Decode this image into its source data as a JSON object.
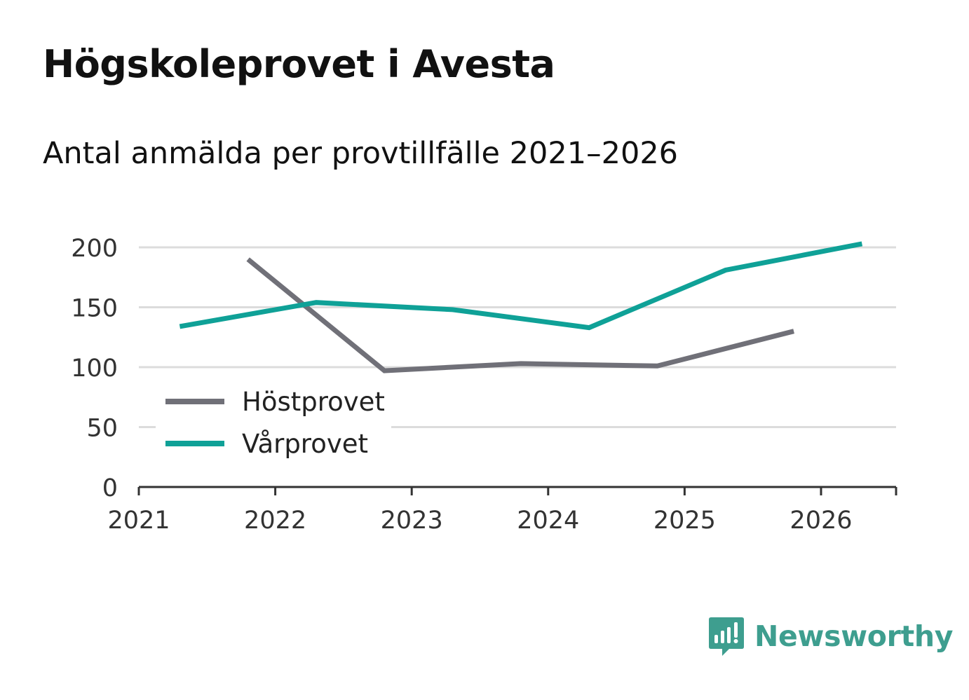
{
  "header": {
    "title": "Högskoleprovet i Avesta",
    "subtitle": "Antal anmälda per provtillfälle 2021–2026"
  },
  "brand": {
    "name": "Newsworthy",
    "color": "#3e9e8f"
  },
  "chart_data": {
    "type": "line",
    "title": "",
    "xlabel": "",
    "ylabel": "",
    "xlim": [
      2021,
      2026.55
    ],
    "ylim": [
      0,
      200
    ],
    "yticks": [
      0,
      50,
      100,
      150,
      200
    ],
    "xticks": [
      "2021",
      "2022",
      "2023",
      "2024",
      "2025",
      "2026"
    ],
    "grid": true,
    "legend_position": "lower-left",
    "series": [
      {
        "name": "Höstprovet",
        "color": "#707078",
        "points": [
          {
            "x": 2021.8,
            "y": 190
          },
          {
            "x": 2022.8,
            "y": 97
          },
          {
            "x": 2023.8,
            "y": 103
          },
          {
            "x": 2024.8,
            "y": 101
          },
          {
            "x": 2025.8,
            "y": 130
          }
        ]
      },
      {
        "name": "Vårprovet",
        "color": "#0fa197",
        "points": [
          {
            "x": 2021.3,
            "y": 134
          },
          {
            "x": 2022.3,
            "y": 154
          },
          {
            "x": 2023.3,
            "y": 148
          },
          {
            "x": 2024.3,
            "y": 133
          },
          {
            "x": 2025.3,
            "y": 181
          },
          {
            "x": 2026.3,
            "y": 203
          }
        ]
      }
    ]
  }
}
